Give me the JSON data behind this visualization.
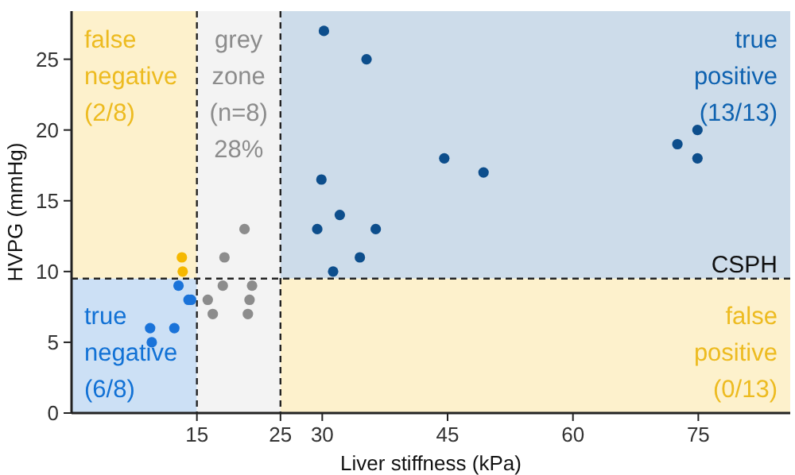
{
  "chart_data": {
    "type": "scatter",
    "xlabel": "Liver stiffness (kPa)",
    "ylabel": "HVPG (mmHg)",
    "xlim": [
      0,
      86
    ],
    "ylim": [
      0,
      28.4
    ],
    "xticks": [
      15,
      25,
      30,
      45,
      60,
      75
    ],
    "yticks": [
      0,
      5,
      10,
      15,
      20,
      25
    ],
    "grid": false,
    "marker": "circle",
    "bands": [
      {
        "axis": "x",
        "from": 0,
        "to": 15,
        "color": "#fdf1cc",
        "label": "false\nnegative\n(2/8)"
      },
      {
        "axis": "x",
        "from": 0,
        "to": 15,
        "color": "#cce0f5",
        "label": "true\nnegative\n(6/8)"
      },
      {
        "axis": "x",
        "from": 15,
        "to": 25,
        "color": "#f3f3f3",
        "label": "grey\nzone\n(n=8)\n28%"
      },
      {
        "axis": "x",
        "from": 25,
        "to": 86,
        "color": "#cddcea",
        "label": "true\npositive\n(13/13)"
      },
      {
        "axis": "x",
        "from": 25,
        "to": 86,
        "color": "#fdf1cc",
        "label": "false\npositive\n(0/13)"
      }
    ],
    "ref_lines": [
      {
        "axis": "x",
        "value": 15,
        "line_style": "dashed"
      },
      {
        "axis": "x",
        "value": 25,
        "line_style": "dashed"
      },
      {
        "axis": "y",
        "value": 9.5,
        "label": "CSPH",
        "line_style": "dashed"
      }
    ],
    "series": [
      {
        "color": "#0d4e8c",
        "x": [
          30.2,
          35.3,
          29.9,
          29.4,
          32.1,
          36.4,
          34.5,
          31.3,
          44.6,
          49.3,
          72.5,
          74.9,
          74.9
        ],
        "values": [
          27,
          25,
          16.5,
          13,
          14,
          13,
          11,
          10,
          18,
          17,
          19,
          20,
          18
        ]
      },
      {
        "color": "#f5b800",
        "x": [
          13.2,
          13.3
        ],
        "values": [
          11,
          10
        ]
      },
      {
        "color": "#1a73d9",
        "x": [
          12.8,
          14.0,
          14.3,
          9.4,
          12.3,
          9.6
        ],
        "values": [
          9,
          8,
          8,
          6,
          6,
          5
        ]
      },
      {
        "color": "#8c8c8c",
        "x": [
          20.7,
          18.3,
          16.3,
          18.1,
          16.9,
          21.6,
          21.3,
          21.1
        ],
        "values": [
          13,
          11,
          8,
          9,
          7,
          9,
          8,
          7
        ]
      }
    ]
  }
}
